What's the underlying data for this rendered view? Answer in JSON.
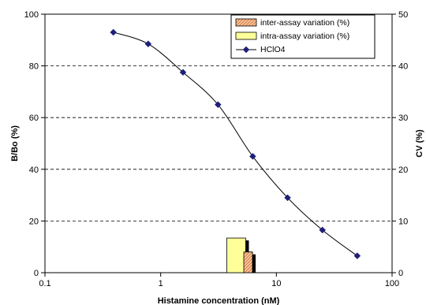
{
  "chart_data": {
    "type": "line",
    "xlabel": "Histamine concentration (nM)",
    "ylabel_left": "B/Bo (%)",
    "ylabel_right": "CV (%)",
    "x_scale": "log",
    "xlim": [
      0.1,
      100
    ],
    "ylim_left": [
      0,
      100
    ],
    "ylim_right": [
      0,
      50
    ],
    "x_ticks": [
      {
        "value": 0.1,
        "label": "0.1"
      },
      {
        "value": 1,
        "label": "1"
      },
      {
        "value": 10,
        "label": "10"
      },
      {
        "value": 100,
        "label": "100"
      }
    ],
    "y_ticks_left": [
      {
        "value": 0,
        "label": "0"
      },
      {
        "value": 20,
        "label": "20"
      },
      {
        "value": 40,
        "label": "40"
      },
      {
        "value": 60,
        "label": "60"
      },
      {
        "value": 80,
        "label": "80"
      },
      {
        "value": 100,
        "label": "100"
      }
    ],
    "y_ticks_right": [
      {
        "value": 0,
        "label": "0"
      },
      {
        "value": 10,
        "label": "10"
      },
      {
        "value": 20,
        "label": "20"
      },
      {
        "value": 30,
        "label": "30"
      },
      {
        "value": 40,
        "label": "40"
      },
      {
        "value": 50,
        "label": "50"
      }
    ],
    "grid": "horizontal dashed",
    "legend_position": "top-right",
    "series": [
      {
        "name": "HClO4",
        "kind": "line-markers",
        "axis": "left",
        "color": "#1f1f7a",
        "x": [
          0.39,
          0.78,
          1.56,
          3.13,
          6.25,
          12.5,
          25,
          50
        ],
        "y": [
          93,
          88.5,
          77.5,
          65,
          45,
          29,
          16.5,
          6.5
        ]
      },
      {
        "name": "intra-assay variation (%)",
        "kind": "bar",
        "axis": "right",
        "color": "#ffff99",
        "x": [
          4.5
        ],
        "y": [
          6.7
        ]
      },
      {
        "name": "inter-assay variation (%)",
        "kind": "bar",
        "axis": "right",
        "color": "#f4b183",
        "x": [
          5.7
        ],
        "y": [
          4.0
        ]
      }
    ],
    "legend": [
      {
        "label": "inter-assay variation (%)",
        "swatch": "hatched-orange"
      },
      {
        "label": "intra-assay variation (%)",
        "swatch": "yellow"
      },
      {
        "label": "HClO4",
        "swatch": "line-marker"
      }
    ]
  }
}
